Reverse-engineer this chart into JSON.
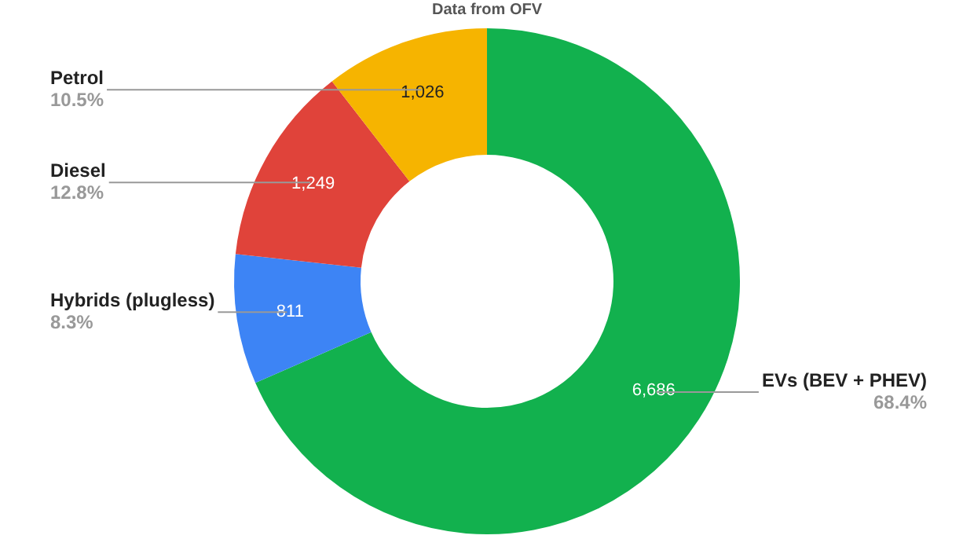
{
  "chart_data": {
    "type": "donut",
    "title": "Data from OFV",
    "categories": [
      "EVs (BEV + PHEV)",
      "Hybrids (plugless)",
      "Diesel",
      "Petrol"
    ],
    "values": [
      6686,
      811,
      1249,
      1026
    ],
    "colors": [
      "#12b14e",
      "#3d84f5",
      "#e0433a",
      "#f6b400"
    ],
    "value_labels": [
      "6,686",
      "811",
      "1,249",
      "1,026"
    ],
    "annotations": [
      {
        "text": "68.4%",
        "x": "EVs (BEV + PHEV)"
      },
      {
        "text": "8.3%",
        "x": "Hybrids (plugless)"
      },
      {
        "text": "12.8%",
        "x": "Diesel"
      },
      {
        "text": "10.5%",
        "x": "Petrol"
      }
    ],
    "legend": false
  }
}
